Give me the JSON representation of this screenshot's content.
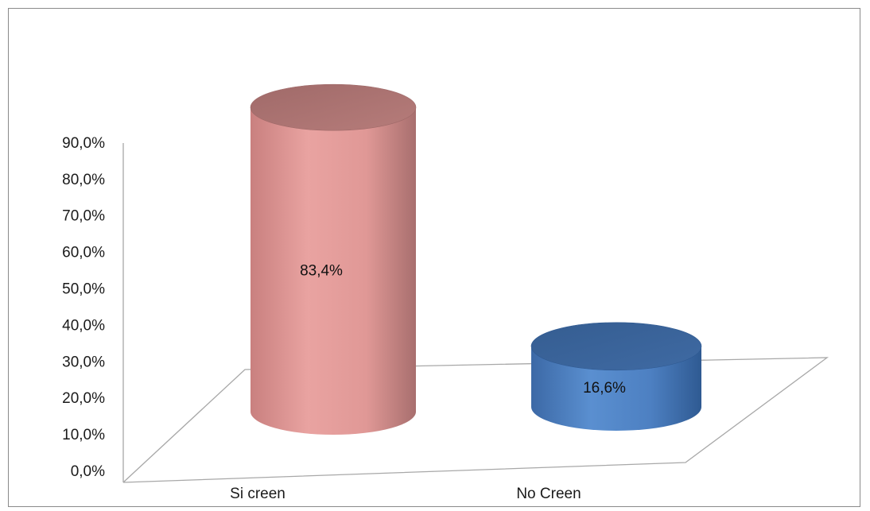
{
  "chart_data": {
    "type": "bar",
    "style": "3d-cylinder",
    "title": "",
    "xlabel": "",
    "ylabel": "",
    "categories": [
      "Si creen",
      "No Creen"
    ],
    "values": [
      83.4,
      16.6
    ],
    "data_labels": [
      "83,4%",
      "16,6%"
    ],
    "y_ticks": [
      "0,0%",
      "10,0%",
      "20,0%",
      "30,0%",
      "40,0%",
      "50,0%",
      "60,0%",
      "70,0%",
      "80,0%",
      "90,0%"
    ],
    "ylim": [
      0,
      90
    ],
    "grid": false,
    "legend": "none",
    "colors": {
      "Si creen": "#e39a98",
      "No Creen": "#4f81bd",
      "frame": "#8a8a8a",
      "floor": "#a8a8a8"
    }
  }
}
